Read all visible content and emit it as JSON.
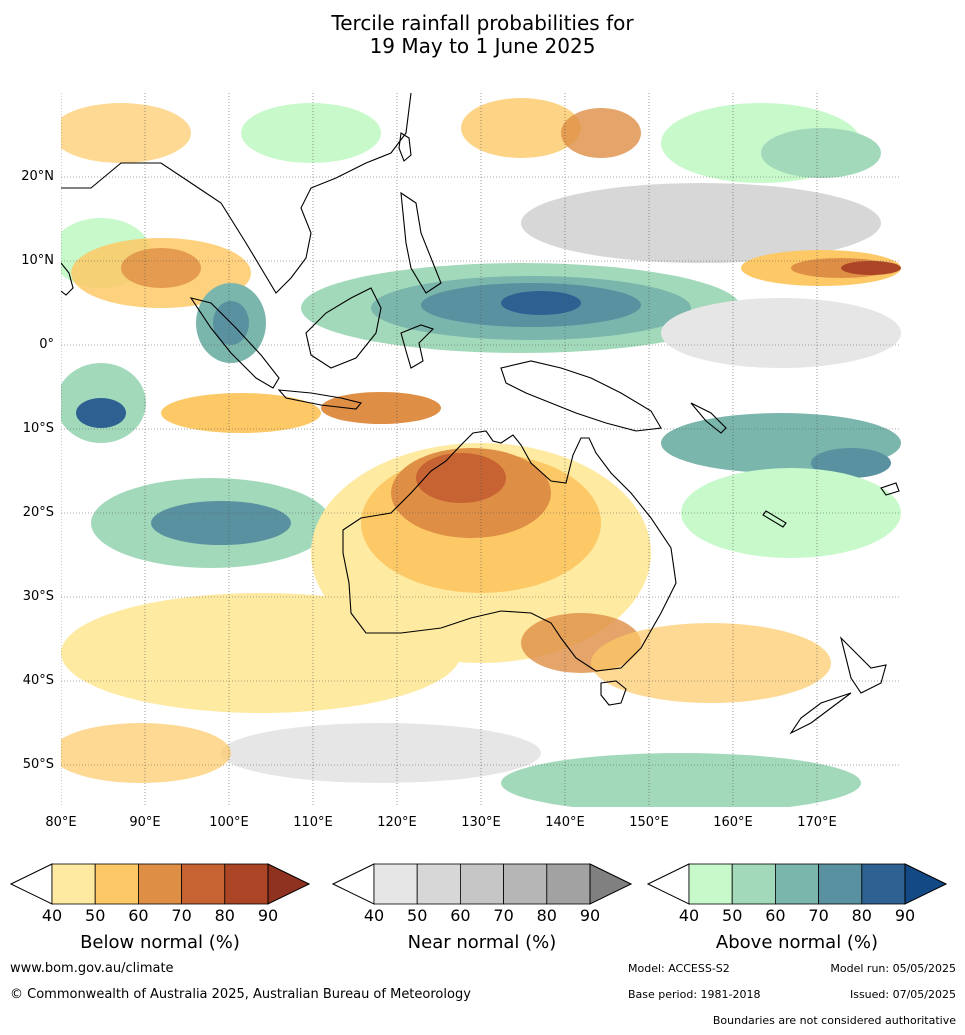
{
  "title": {
    "line1": "Tercile rainfall probabilities for",
    "line2": "19 May to 1 June 2025"
  },
  "map": {
    "lat_labels": [
      "20°N",
      "10°N",
      "0°",
      "10°S",
      "20°S",
      "30°S",
      "40°S",
      "50°S"
    ],
    "lon_labels": [
      "80°E",
      "90°E",
      "100°E",
      "110°E",
      "120°E",
      "130°E",
      "140°E",
      "150°E",
      "160°E",
      "170°E"
    ],
    "lat_values": [
      20,
      10,
      0,
      -10,
      -20,
      -30,
      -40,
      -50
    ],
    "lon_values": [
      80,
      90,
      100,
      110,
      120,
      130,
      140,
      150,
      160,
      170
    ],
    "lon_range": [
      80,
      180
    ],
    "lat_range": [
      -55,
      30
    ],
    "gridlines": true
  },
  "legends": [
    {
      "title": "Below normal (%)",
      "ticks": [
        "40",
        "50",
        "60",
        "70",
        "80",
        "90"
      ],
      "colors": [
        "#ffffff",
        "#feeaa1",
        "#fdc966",
        "#df8e45",
        "#c76232",
        "#ab4525",
        "#8f3220"
      ]
    },
    {
      "title": "Near normal (%)",
      "ticks": [
        "40",
        "50",
        "60",
        "70",
        "80",
        "90"
      ],
      "colors": [
        "#ffffff",
        "#e6e6e6",
        "#d7d7d7",
        "#c6c6c6",
        "#b6b6b6",
        "#a2a2a2",
        "#808080"
      ]
    },
    {
      "title": "Above normal (%)",
      "ticks": [
        "40",
        "50",
        "60",
        "70",
        "80",
        "90"
      ],
      "colors": [
        "#ffffff",
        "#c8f9cb",
        "#a3d9bb",
        "#7bb6ad",
        "#5a91a0",
        "#2e6191",
        "#134a85"
      ]
    }
  ],
  "footer": {
    "website": "www.bom.gov.au/climate",
    "copyright": "© Commonwealth of Australia 2025, Australian Bureau of Meteorology",
    "model": "Model: ACCESS-S2",
    "model_run": "Model run: 05/05/2025",
    "base_period": "Base period: 1981-2018",
    "issued": "Issued: 07/05/2025",
    "boundaries": "Boundaries are not considered authoritative"
  }
}
